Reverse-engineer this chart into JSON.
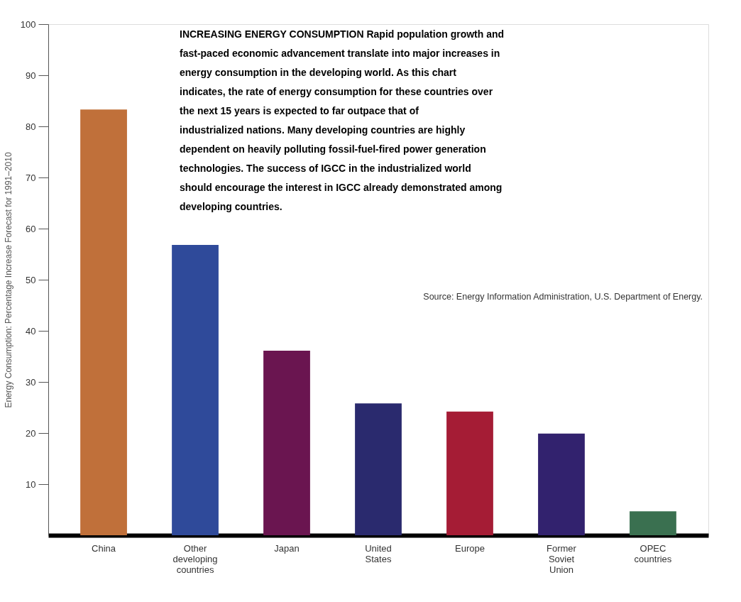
{
  "chart_data": {
    "type": "bar",
    "title": "INCREASING ENERGY CONSUMPTION",
    "subtitle": "Rapid population growth and fast-paced economic advancement translate into major increases in energy consumption in the developing world. As this chart indicates, the rate of energy consumption for these countries over the next 15 years is expected to far outpace that of industrialized nations. Many developing countries are highly dependent on heavily polluting fossil-fuel-fired power generation technologies. The success of IGCC in the industrialized world should encourage the interest in IGCC already demonstrated among developing countries.",
    "ylabel": "Energy Consumption: Percentage Increase Forecast for 1991–2010",
    "annotations": [
      "Source: Energy Information Administration, U.S. Department of Energy."
    ],
    "categories": [
      "China",
      "Other developing countries",
      "Japan",
      "United States",
      "Europe",
      "Former Soviet Union",
      "OPEC countries"
    ],
    "values": [
      83.3,
      56.8,
      36.1,
      25.8,
      24.2,
      19.9,
      4.7
    ],
    "colors": [
      "#c0703a",
      "#2f4a9a",
      "#6a1550",
      "#2a2a6e",
      "#a51c35",
      "#32226e",
      "#3a7050"
    ],
    "ylim": [
      0,
      100
    ],
    "yticks": [
      10,
      20,
      30,
      40,
      50,
      60,
      70,
      80,
      90,
      100
    ],
    "grid": false
  }
}
